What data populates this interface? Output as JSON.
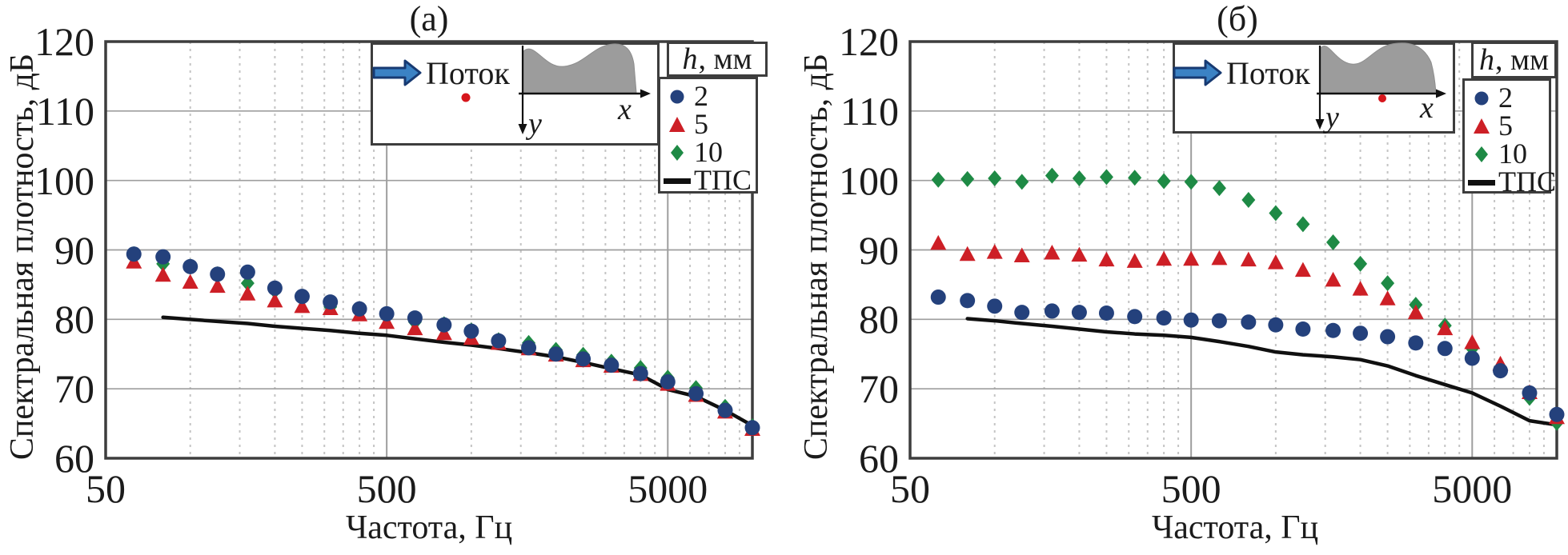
{
  "figure": {
    "legend": {
      "header_symbol": "h",
      "header_unit": ", мм",
      "items": [
        {
          "label": "2",
          "marker": "circle",
          "color": "#24417c"
        },
        {
          "label": "5",
          "marker": "triangle",
          "color": "#cd1f26"
        },
        {
          "label": "10",
          "marker": "diamond",
          "color": "#1e8a45"
        },
        {
          "label": "ТПС",
          "marker": "line",
          "color": "#101010"
        }
      ]
    },
    "inset": {
      "flow_label": "Поток",
      "x_axis_label": "x",
      "y_axis_label": "y"
    }
  },
  "chart_data": [
    {
      "id": "a",
      "title": "(а)",
      "type": "scatter",
      "x_scale": "log",
      "xlim": [
        50,
        10000
      ],
      "ylim": [
        60,
        120
      ],
      "x_major_ticks": [
        50,
        500,
        5000
      ],
      "y_ticks": [
        60,
        70,
        80,
        90,
        100,
        110,
        120
      ],
      "xlabel": "Частота, Гц",
      "ylabel": "Спектральная плотность, дБ",
      "grid": true,
      "legend_position": "top-right",
      "frequencies": [
        63,
        80,
        100,
        125,
        160,
        200,
        250,
        315,
        400,
        500,
        630,
        800,
        1000,
        1250,
        1600,
        2000,
        2500,
        3150,
        4000,
        5000,
        6300,
        8000,
        10000
      ],
      "series": [
        {
          "name": "2",
          "marker": "circle",
          "color": "#24417c",
          "values": [
            89.4,
            89.0,
            87.6,
            86.5,
            86.8,
            84.5,
            83.3,
            82.5,
            81.5,
            80.8,
            80.2,
            79.2,
            78.3,
            76.9,
            75.9,
            75.0,
            74.3,
            73.4,
            72.2,
            71.0,
            69.3,
            66.9,
            64.4
          ]
        },
        {
          "name": "5",
          "marker": "triangle",
          "color": "#cd1f26",
          "values": [
            88.3,
            86.4,
            85.4,
            84.8,
            83.7,
            82.7,
            81.9,
            81.6,
            80.7,
            79.6,
            78.7,
            78.0,
            77.3,
            76.6,
            75.8,
            74.9,
            74.1,
            73.3,
            72.1,
            70.7,
            69.1,
            66.7,
            64.2
          ]
        },
        {
          "name": "10",
          "marker": "diamond",
          "color": "#1e8a45",
          "values": [
            89.4,
            88.0,
            87.6,
            86.5,
            85.2,
            84.1,
            83.1,
            81.8,
            81.3,
            80.4,
            79.6,
            79.3,
            78.4,
            77.0,
            76.6,
            75.6,
            74.9,
            73.9,
            73.0,
            71.6,
            70.1,
            67.4,
            64.6
          ]
        },
        {
          "name": "ТПС",
          "marker": "line",
          "color": "#101010",
          "x": [
            80,
            100,
            125,
            160,
            200,
            250,
            315,
            400,
            500,
            630,
            800,
            1000,
            1250,
            1600,
            2000,
            2500,
            3150,
            4000,
            5000,
            6300,
            8000,
            10000
          ],
          "values": [
            80.3,
            80.0,
            79.7,
            79.4,
            79.0,
            78.7,
            78.4,
            78.0,
            77.7,
            77.2,
            76.7,
            76.3,
            75.8,
            75.2,
            74.6,
            73.8,
            72.9,
            72.0,
            69.9,
            68.9,
            66.9,
            64.7
          ]
        }
      ]
    },
    {
      "id": "b",
      "title": "(б)",
      "type": "scatter",
      "x_scale": "log",
      "xlim": [
        50,
        10000
      ],
      "ylim": [
        60,
        120
      ],
      "x_major_ticks": [
        50,
        500,
        5000
      ],
      "y_ticks": [
        60,
        70,
        80,
        90,
        100,
        110,
        120
      ],
      "xlabel": "Частота, Гц",
      "ylabel": "Спектральная плотность, дБ",
      "grid": true,
      "legend_position": "top-right",
      "frequencies": [
        63,
        80,
        100,
        125,
        160,
        200,
        250,
        315,
        400,
        500,
        630,
        800,
        1000,
        1250,
        1600,
        2000,
        2500,
        3150,
        4000,
        5000,
        6300,
        8000,
        10000
      ],
      "series": [
        {
          "name": "2",
          "marker": "circle",
          "color": "#24417c",
          "values": [
            83.2,
            82.7,
            81.9,
            81.0,
            81.2,
            81.0,
            80.9,
            80.4,
            80.2,
            79.9,
            79.8,
            79.6,
            79.2,
            78.6,
            78.4,
            78.0,
            77.5,
            76.6,
            75.8,
            74.4,
            72.6,
            69.4,
            66.3
          ]
        },
        {
          "name": "5",
          "marker": "triangle",
          "color": "#cd1f26",
          "values": [
            91.0,
            89.4,
            89.7,
            89.2,
            89.6,
            89.3,
            88.6,
            88.4,
            88.7,
            88.7,
            88.8,
            88.6,
            88.2,
            87.1,
            85.7,
            84.4,
            83.0,
            81.0,
            78.7,
            76.7,
            73.6,
            69.5,
            65.9
          ]
        },
        {
          "name": "10",
          "marker": "diamond",
          "color": "#1e8a45",
          "values": [
            100.1,
            100.2,
            100.3,
            99.8,
            100.7,
            100.3,
            100.5,
            100.4,
            99.9,
            99.8,
            98.9,
            97.2,
            95.3,
            93.7,
            91.1,
            88.0,
            85.2,
            82.1,
            79.1,
            75.8,
            72.8,
            68.7,
            65.1
          ]
        },
        {
          "name": "ТПС",
          "marker": "line",
          "color": "#101010",
          "x": [
            80,
            100,
            125,
            160,
            200,
            250,
            315,
            400,
            500,
            630,
            800,
            1000,
            1250,
            1600,
            2000,
            2500,
            3150,
            4000,
            5000,
            6300,
            8000,
            10000
          ],
          "values": [
            80.1,
            79.8,
            79.4,
            79.0,
            78.6,
            78.2,
            77.9,
            77.7,
            77.4,
            76.8,
            76.1,
            75.3,
            74.9,
            74.6,
            74.2,
            73.3,
            71.9,
            70.6,
            69.4,
            67.5,
            65.4,
            64.8
          ]
        }
      ]
    }
  ]
}
